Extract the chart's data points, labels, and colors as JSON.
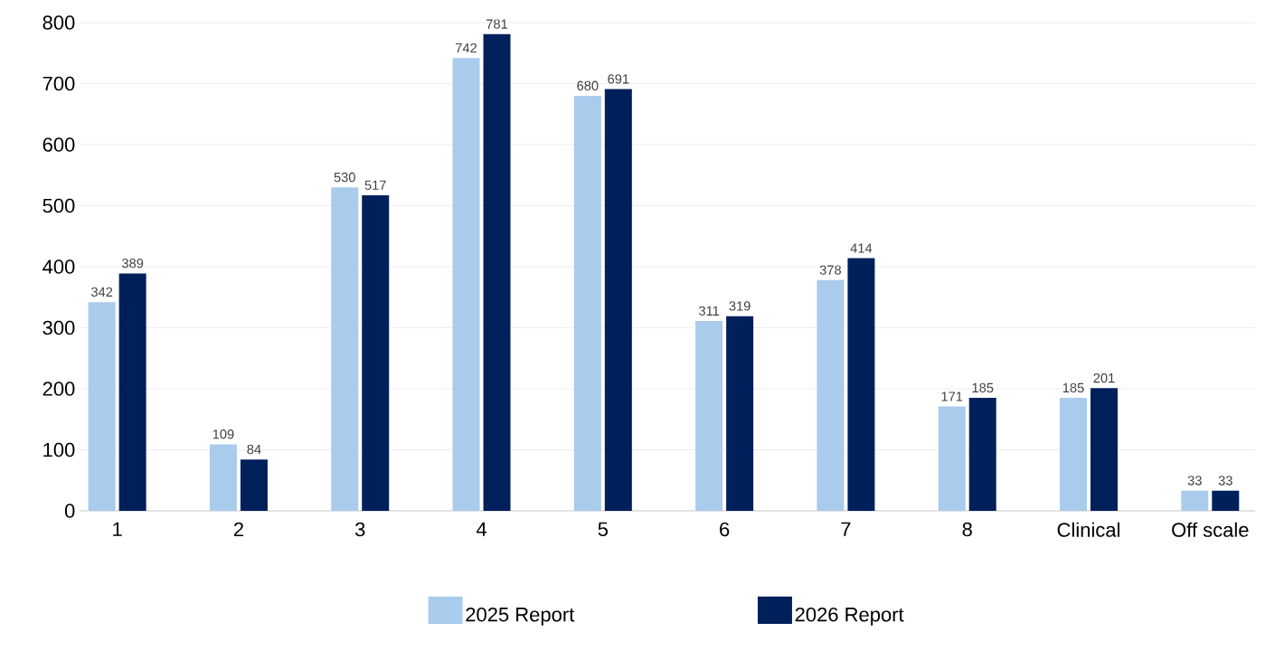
{
  "chart_data": {
    "type": "bar",
    "categories": [
      "1",
      "2",
      "3",
      "4",
      "5",
      "6",
      "7",
      "8",
      "Clinical",
      "Off scale"
    ],
    "series": [
      {
        "name": "2025 Report",
        "color": "#a9cbec",
        "values": [
          342,
          109,
          530,
          742,
          680,
          311,
          378,
          171,
          185,
          33
        ]
      },
      {
        "name": "2026 Report",
        "color": "#00205b",
        "values": [
          389,
          84,
          517,
          781,
          691,
          319,
          414,
          185,
          201,
          33
        ]
      }
    ],
    "ylim": [
      0,
      800
    ],
    "yticks": [
      0,
      100,
      200,
      300,
      400,
      500,
      600,
      700,
      800
    ],
    "grid": "y",
    "legend": "bottom",
    "data_labels": true
  }
}
